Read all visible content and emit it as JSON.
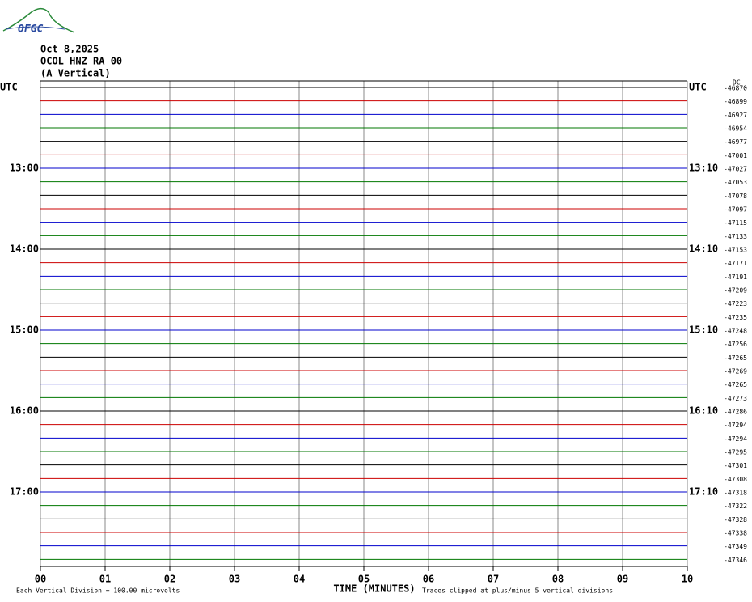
{
  "chart_data": {
    "type": "helicorder",
    "logo": "OFGC",
    "title_lines": [
      "Oct 8,2025",
      "OCOL HNZ RA 00",
      "(A Vertical)"
    ],
    "dc_label": "DC",
    "xlabel": "TIME (MINUTES)",
    "footnote_left": "Each Vertical Division =  100.00 microvolts",
    "footnote_right": "Traces clipped at plus/minus 5 vertical divisions",
    "xlim": [
      0,
      10
    ],
    "xticks": [
      {
        "value": 0,
        "label": "00"
      },
      {
        "value": 1,
        "label": "01"
      },
      {
        "value": 2,
        "label": "02"
      },
      {
        "value": 3,
        "label": "03"
      },
      {
        "value": 4,
        "label": "04"
      },
      {
        "value": 5,
        "label": "05"
      },
      {
        "value": 6,
        "label": "06"
      },
      {
        "value": 7,
        "label": "07"
      },
      {
        "value": 8,
        "label": "08"
      },
      {
        "value": 9,
        "label": "09"
      },
      {
        "value": 10,
        "label": "10"
      }
    ],
    "colors": [
      "#000000",
      "#cc0000",
      "#0000cc",
      "#007700"
    ],
    "left_labels": [
      "UTC",
      null,
      null,
      null,
      null,
      null,
      "13:00",
      null,
      null,
      null,
      null,
      null,
      "14:00",
      null,
      null,
      null,
      null,
      null,
      "15:00",
      null,
      null,
      null,
      null,
      null,
      "16:00",
      null,
      null,
      null,
      null,
      null,
      "17:00",
      null,
      null,
      null,
      null,
      null
    ],
    "right_labels": [
      "UTC",
      null,
      null,
      null,
      null,
      null,
      "13:10",
      null,
      null,
      null,
      null,
      null,
      "14:10",
      null,
      null,
      null,
      null,
      null,
      "15:10",
      null,
      null,
      null,
      null,
      null,
      "16:10",
      null,
      null,
      null,
      null,
      null,
      "17:10",
      null,
      null,
      null,
      null,
      null
    ],
    "dc_offsets": [
      -46870,
      -46899,
      -46927,
      -46954,
      -46977,
      -47001,
      -47027,
      -47053,
      -47078,
      -47097,
      -47115,
      -47133,
      -47153,
      -47171,
      -47191,
      -47209,
      -47223,
      -47235,
      -47248,
      -47256,
      -47265,
      -47269,
      -47265,
      -47273,
      -47286,
      -47294,
      -47294,
      -47295,
      -47301,
      -47308,
      -47318,
      -47322,
      -47328,
      -47338,
      -47349,
      -47346
    ]
  }
}
